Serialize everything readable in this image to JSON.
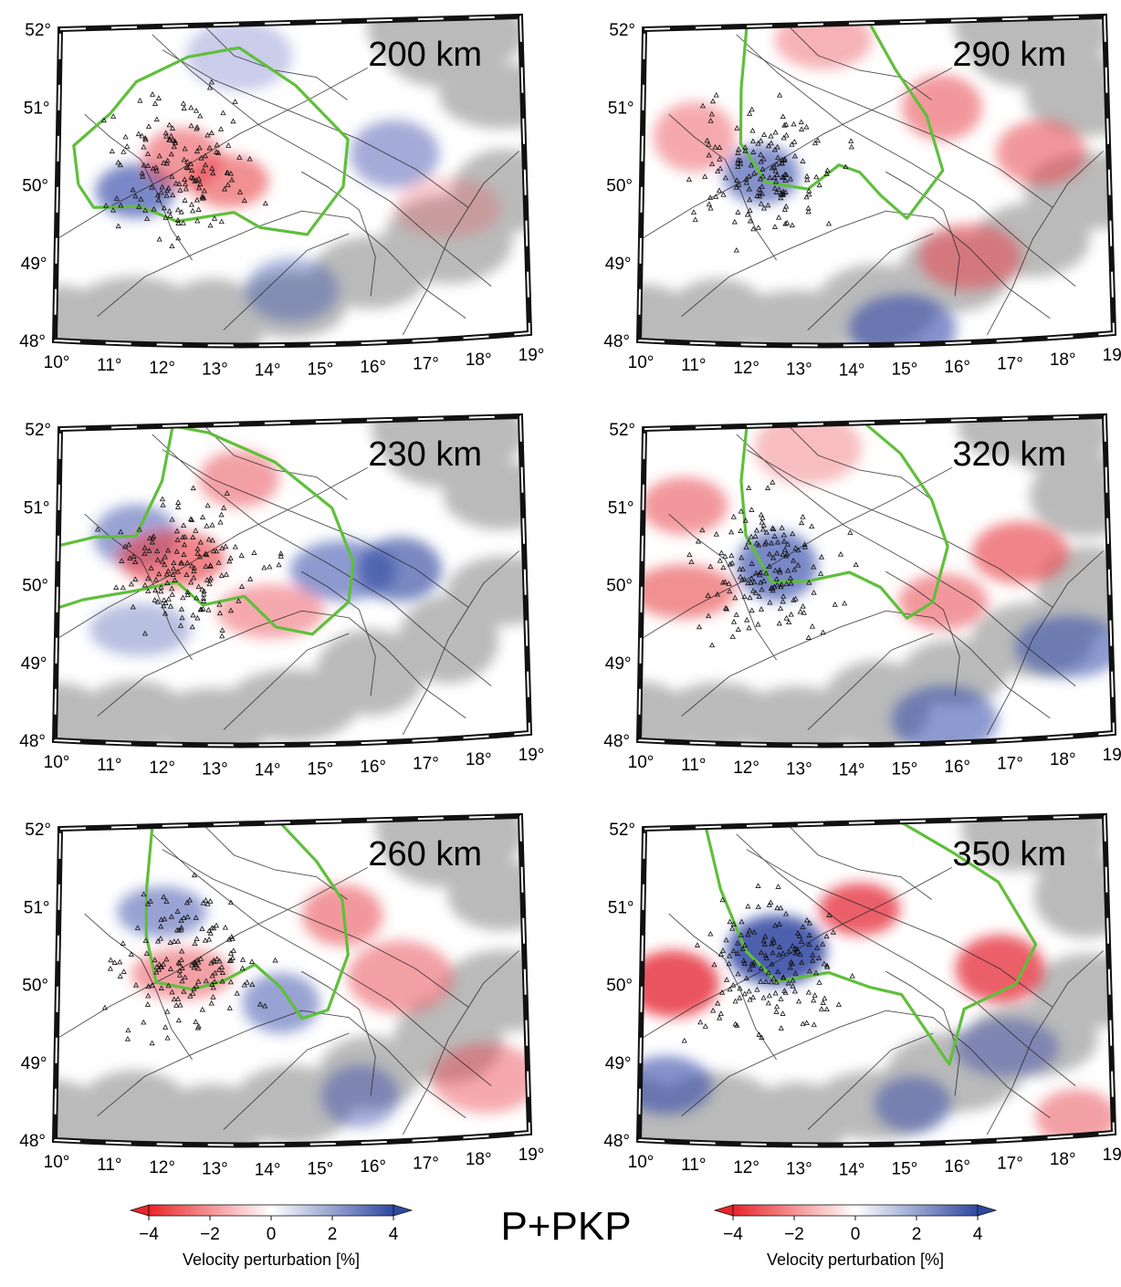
{
  "figure": {
    "title": "P+PKP",
    "lat_ticks": [
      "48°",
      "49°",
      "50°",
      "51°",
      "52°"
    ],
    "lon_ticks": [
      "10°",
      "11°",
      "12°",
      "13°",
      "14°",
      "15°",
      "16°",
      "17°",
      "18°",
      "19°"
    ],
    "lon_range": [
      10,
      19
    ],
    "lat_range": [
      48,
      52
    ],
    "contour_color": "#5fbf3a",
    "nodata_color": "#b3b3b3"
  },
  "panels": [
    {
      "id": "p200",
      "depth_label": "200 km",
      "column": "left",
      "row": 1
    },
    {
      "id": "p290",
      "depth_label": "290 km",
      "column": "right",
      "row": 1
    },
    {
      "id": "p230",
      "depth_label": "230 km",
      "column": "left",
      "row": 2
    },
    {
      "id": "p320",
      "depth_label": "320 km",
      "column": "right",
      "row": 2
    },
    {
      "id": "p260",
      "depth_label": "260 km",
      "column": "left",
      "row": 3
    },
    {
      "id": "p350",
      "depth_label": "350 km",
      "column": "right",
      "row": 3
    }
  ],
  "colorbar": {
    "label": "Velocity perturbation [%]",
    "ticks": [
      "−4",
      "−2",
      "0",
      "2",
      "4"
    ],
    "range": [
      -4,
      4
    ],
    "low_color": "#e8262a",
    "mid_color": "#ffffff",
    "high_color": "#2f48a0"
  }
}
